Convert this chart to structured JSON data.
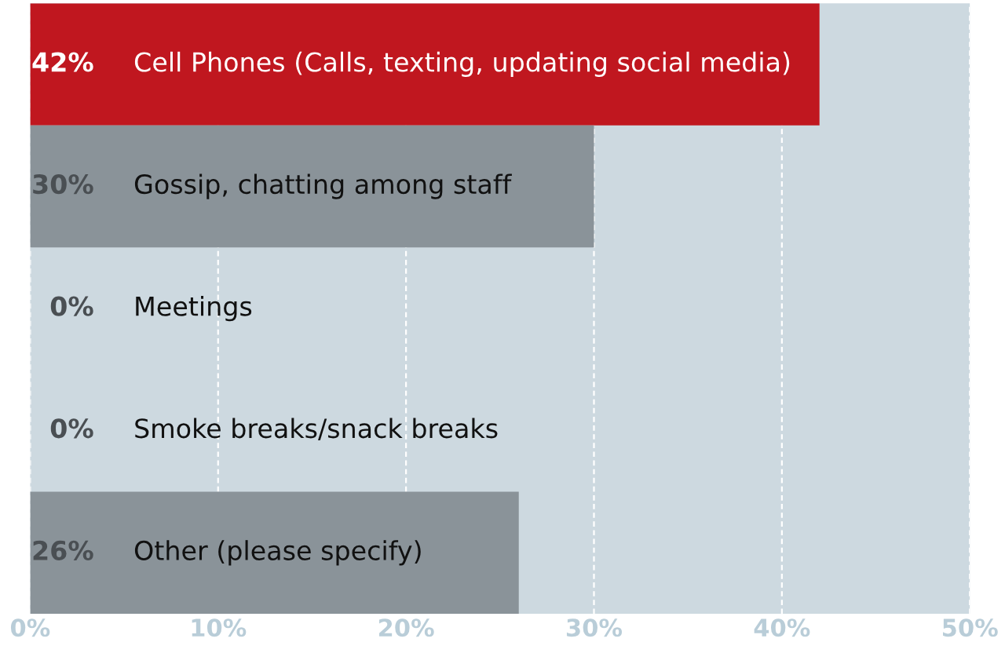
{
  "chart_data": {
    "type": "bar",
    "orientation": "horizontal",
    "categories": [
      "Cell Phones (Calls, texting, updating social media)",
      "Gossip, chatting among staff",
      "Meetings",
      "Smoke breaks/snack breaks",
      "Other (please specify)"
    ],
    "values": [
      42,
      30,
      0,
      0,
      26
    ],
    "colors": [
      "#c0171f",
      "#8a9399",
      "#8a9399",
      "#8a9399",
      "#8a9399"
    ],
    "value_labels": [
      "42%",
      "30%",
      "0%",
      "0%",
      "26%"
    ],
    "xlim": [
      0,
      50
    ],
    "xticks": [
      {
        "value": 0,
        "label": "0%"
      },
      {
        "value": 10,
        "label": "10%"
      },
      {
        "value": 20,
        "label": "20%"
      },
      {
        "value": 30,
        "label": "30%"
      },
      {
        "value": 40,
        "label": "40%"
      },
      {
        "value": 50,
        "label": "50%"
      }
    ],
    "grid": "x"
  }
}
